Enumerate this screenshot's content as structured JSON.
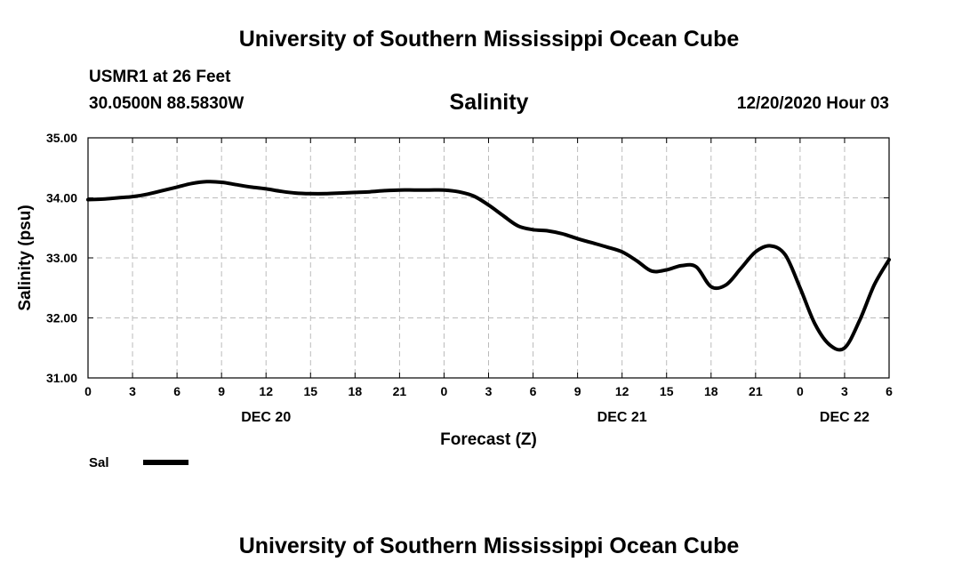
{
  "header": {
    "title": "University of Southern Mississippi Ocean Cube",
    "station": "USMR1 at 26 Feet",
    "coordinates": "30.0500N 88.5830W",
    "variable_title": "Salinity",
    "datetime": "12/20/2020 Hour 03"
  },
  "footer": {
    "title": "University of Southern Mississippi Ocean Cube"
  },
  "chart_data": {
    "type": "line",
    "title": "Salinity",
    "xlabel": "Forecast (Z)",
    "ylabel": "Salinity (psu)",
    "xlim": [
      0,
      54
    ],
    "ylim": [
      31.0,
      35.0
    ],
    "grid": true,
    "line_color": "#000000",
    "grid_color": "#bbbbbb",
    "x_ticks": [
      {
        "x": 0,
        "label": "0"
      },
      {
        "x": 3,
        "label": "3"
      },
      {
        "x": 6,
        "label": "6"
      },
      {
        "x": 9,
        "label": "9"
      },
      {
        "x": 12,
        "label": "12"
      },
      {
        "x": 15,
        "label": "15"
      },
      {
        "x": 18,
        "label": "18"
      },
      {
        "x": 21,
        "label": "21"
      },
      {
        "x": 24,
        "label": "0"
      },
      {
        "x": 27,
        "label": "3"
      },
      {
        "x": 30,
        "label": "6"
      },
      {
        "x": 33,
        "label": "9"
      },
      {
        "x": 36,
        "label": "12"
      },
      {
        "x": 39,
        "label": "15"
      },
      {
        "x": 42,
        "label": "18"
      },
      {
        "x": 45,
        "label": "21"
      },
      {
        "x": 48,
        "label": "0"
      },
      {
        "x": 51,
        "label": "3"
      },
      {
        "x": 54,
        "label": "6"
      }
    ],
    "y_ticks": [
      {
        "y": 31.0,
        "label": "31.00"
      },
      {
        "y": 32.0,
        "label": "32.00"
      },
      {
        "y": 33.0,
        "label": "33.00"
      },
      {
        "y": 34.0,
        "label": "34.00"
      },
      {
        "y": 35.0,
        "label": "35.00"
      }
    ],
    "date_labels": [
      {
        "x": 12,
        "label": "DEC 20"
      },
      {
        "x": 36,
        "label": "DEC 21"
      },
      {
        "x": 51,
        "label": "DEC 22"
      }
    ],
    "legend": {
      "label": "Sal",
      "position": "bottom-left"
    },
    "series": [
      {
        "name": "Sal",
        "x": [
          0,
          1,
          2,
          3,
          4,
          5,
          6,
          7,
          8,
          9,
          10,
          11,
          12,
          13,
          14,
          15,
          16,
          17,
          18,
          19,
          20,
          21,
          22,
          23,
          24,
          25,
          26,
          27,
          28,
          29,
          30,
          31,
          32,
          33,
          34,
          35,
          36,
          37,
          38,
          39,
          40,
          41,
          42,
          43,
          44,
          45,
          46,
          47,
          48,
          49,
          50,
          51,
          52,
          53,
          54
        ],
        "values": [
          33.97,
          33.98,
          34.0,
          34.02,
          34.06,
          34.12,
          34.18,
          34.24,
          34.27,
          34.26,
          34.22,
          34.18,
          34.15,
          34.11,
          34.08,
          34.07,
          34.07,
          34.08,
          34.09,
          34.1,
          34.12,
          34.13,
          34.13,
          34.13,
          34.13,
          34.1,
          34.03,
          33.88,
          33.7,
          33.53,
          33.47,
          33.45,
          33.4,
          33.32,
          33.25,
          33.18,
          33.1,
          32.95,
          32.78,
          32.8,
          32.87,
          32.85,
          32.52,
          32.55,
          32.82,
          33.1,
          33.2,
          33.05,
          32.5,
          31.9,
          31.55,
          31.5,
          31.95,
          32.55,
          32.97
        ]
      }
    ]
  }
}
